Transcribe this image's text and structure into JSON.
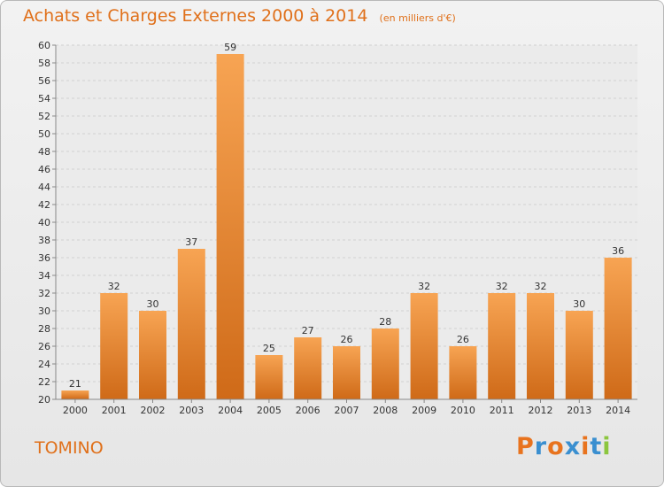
{
  "title": "Achats et Charges Externes 2000 à 2014",
  "subtitle": "(en milliers d'€)",
  "commune": "TOMINO",
  "brand": {
    "name": "Proxiti",
    "letter_colors": [
      "#e8731e",
      "#3a8fd0",
      "#e8731e",
      "#3a8fd0",
      "#e8731e",
      "#3a8fd0",
      "#8cc63f"
    ]
  },
  "colors": {
    "bar_light": "#f7a453",
    "bar_dark": "#cf6a18",
    "accent": "#e0701a",
    "text": "#333333"
  },
  "chart_data": {
    "type": "bar",
    "title": "Achats et Charges Externes 2000 à 2014",
    "subtitle": "(en milliers d'€)",
    "categories": [
      "2000",
      "2001",
      "2002",
      "2003",
      "2004",
      "2005",
      "2006",
      "2007",
      "2008",
      "2009",
      "2010",
      "2011",
      "2012",
      "2013",
      "2014"
    ],
    "values": [
      21,
      32,
      30,
      37,
      59,
      25,
      27,
      26,
      28,
      32,
      26,
      32,
      32,
      30,
      36
    ],
    "ylim": [
      20,
      60
    ],
    "yticks": [
      20,
      22,
      24,
      26,
      28,
      30,
      32,
      34,
      36,
      38,
      40,
      42,
      44,
      46,
      48,
      50,
      52,
      54,
      56,
      58,
      60
    ],
    "grid": true,
    "xlabel": "",
    "ylabel": ""
  }
}
